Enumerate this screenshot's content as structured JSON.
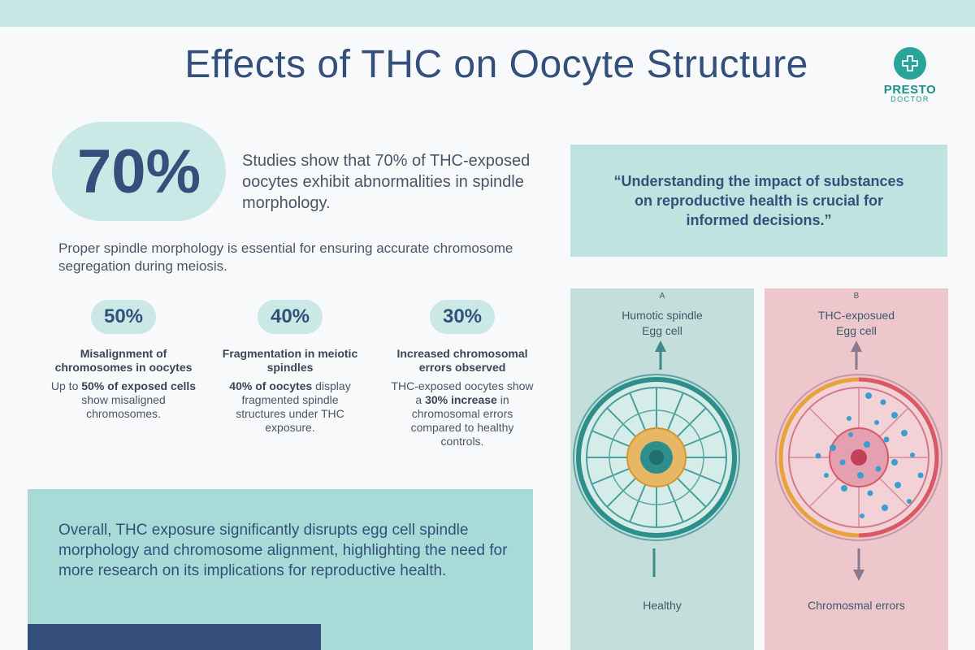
{
  "title": "Effects of THC on Oocyte Structure",
  "logo": {
    "name": "PRESTO",
    "sub": "DOCTOR"
  },
  "highlight": {
    "value": "70%",
    "text": "Studies show that 70% of THC-exposed oocytes exhibit abnormalities in spindle morphology."
  },
  "paragraph": "Proper spindle morphology is essential for ensuring accurate chromosome segregation during meiosis.",
  "stats": [
    {
      "value": "50%",
      "heading": "Misalignment of chromosomes in oocytes",
      "pre": "Up to ",
      "bold": "50% of exposed cells",
      "post": " show misaligned chromosomes."
    },
    {
      "value": "40%",
      "heading": "Fragmentation in meiotic spindles",
      "pre": "",
      "bold": "40% of oocytes",
      "post": " display fragmented spindle structures under THC exposure."
    },
    {
      "value": "30%",
      "heading": "Increased chromosomal errors observed",
      "pre": "THC-exposed oocytes show a ",
      "bold": "30% increase",
      "post": " in chromosomal errors compared to healthy controls."
    }
  ],
  "quote": "“Understanding the impact of substances on reproductive health is crucial for informed decisions.”",
  "panels": [
    {
      "letter": "A",
      "top_line1": "Humotic spindle",
      "top_line2": "Egg cell",
      "bottom": "Healthy"
    },
    {
      "letter": "B",
      "top_line1": "THC-exposued",
      "top_line2": "Egg cell",
      "bottom": "Chromosmal errors"
    }
  ],
  "summary": "Overall, THC exposure significantly disrupts egg cell spindle morphology and chromosome alignment, highlighting the need for more research on its implications for reproductive health.",
  "colors": {
    "accent": "#34507a",
    "teal_light": "#c9e8e6",
    "teal_box": "#a8dad7",
    "pink_panel": "#eec7cd",
    "logo": "#2aa39a"
  }
}
